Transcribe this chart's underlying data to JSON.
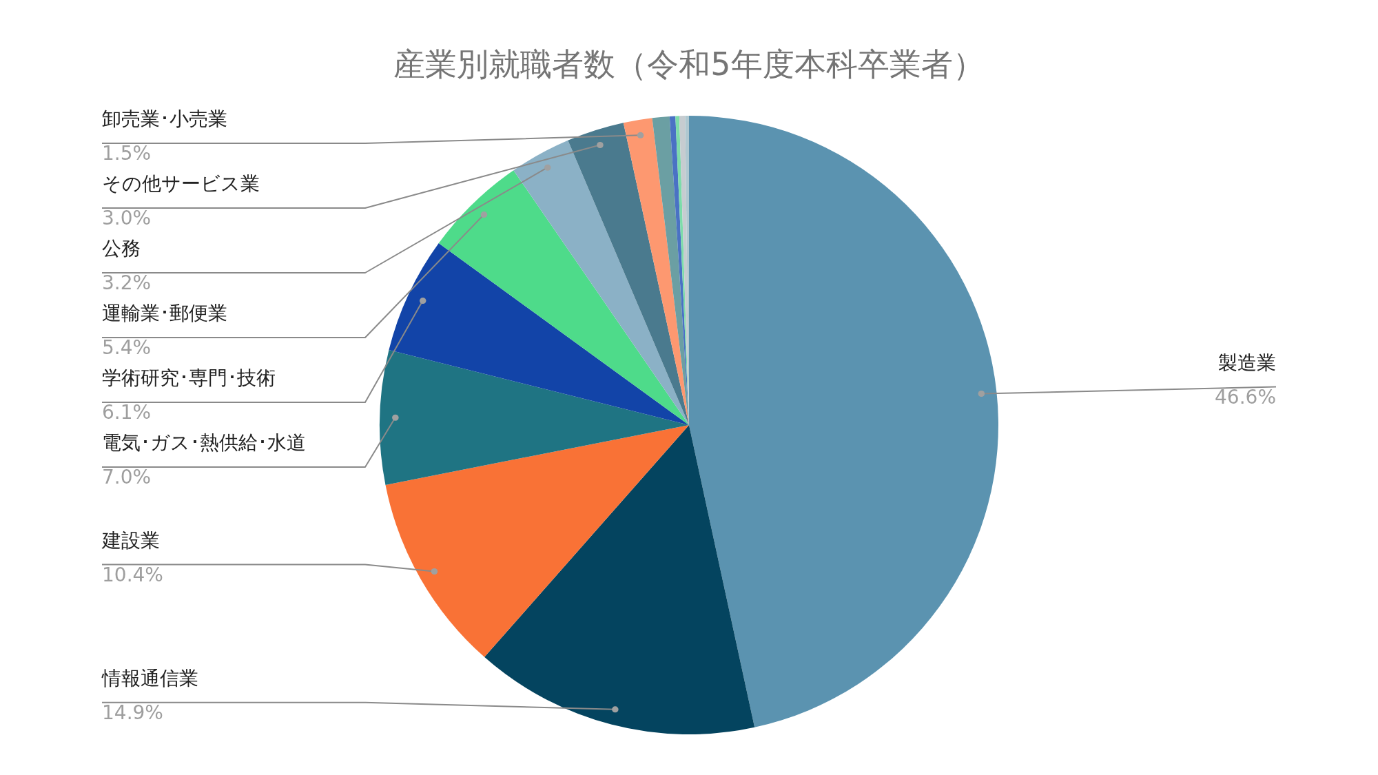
{
  "chart_data": {
    "type": "pie",
    "title": "産業別就職者数（令和5年度本科卒業者）",
    "categories": [
      "製造業",
      "情報通信業",
      "建設業",
      "電気･ガス･熱供給･水道",
      "学術研究･専門･技術",
      "運輸業･郵便業",
      "公務",
      "その他サービス業",
      "卸売業･小売業",
      null,
      null,
      null,
      null,
      null
    ],
    "values": [
      46.6,
      14.9,
      10.4,
      7.0,
      6.1,
      5.4,
      3.2,
      3.0,
      1.5,
      0.9,
      0.3,
      0.2,
      0.3,
      0.2
    ],
    "value_labels": [
      "46.6%",
      "14.9%",
      "10.4%",
      "7.0%",
      "6.1%",
      "5.4%",
      "3.2%",
      "3.0%",
      "1.5%",
      null,
      null,
      null,
      null,
      null
    ],
    "colors": [
      "#5b93b0",
      "#04445f",
      "#f97236",
      "#1f7483",
      "#1244a8",
      "#4edb8a",
      "#8bb1c6",
      "#4a7a8e",
      "#fd9870",
      "#6b9fa3",
      "#4a72c4",
      "#7ddcaa",
      "#c6ccd0",
      "#b0c8d0"
    ]
  }
}
